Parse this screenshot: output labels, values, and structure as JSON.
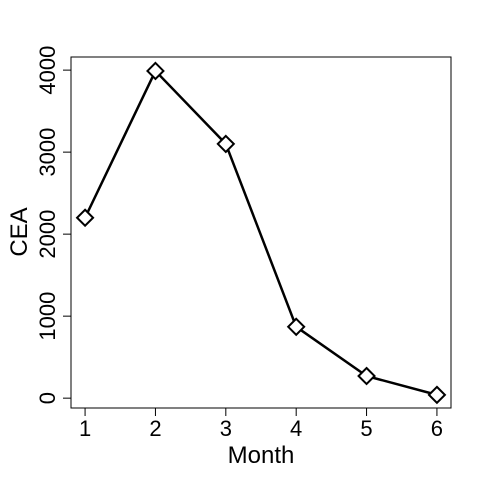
{
  "chart_data": {
    "type": "line",
    "title": "",
    "xlabel": "Month",
    "ylabel": "CEA",
    "x": [
      1,
      2,
      3,
      4,
      5,
      6
    ],
    "series": [
      {
        "values": [
          2200,
          3990,
          3100,
          870,
          270,
          40
        ]
      }
    ],
    "xlim": [
      0.8,
      6.2
    ],
    "ylim": [
      -120,
      4160
    ],
    "xticks": [
      1,
      2,
      3,
      4,
      5,
      6
    ],
    "yticks": [
      0,
      1000,
      2000,
      3000,
      4000
    ],
    "xtick_labels": [
      "1",
      "2",
      "3",
      "4",
      "5",
      "6"
    ],
    "ytick_labels": [
      "0",
      "1000",
      "2000",
      "3000",
      "4000"
    ],
    "marker": "open-diamond",
    "line_color": "#000000",
    "marker_fill": "#ffffff",
    "grid": false,
    "legend": "none"
  }
}
